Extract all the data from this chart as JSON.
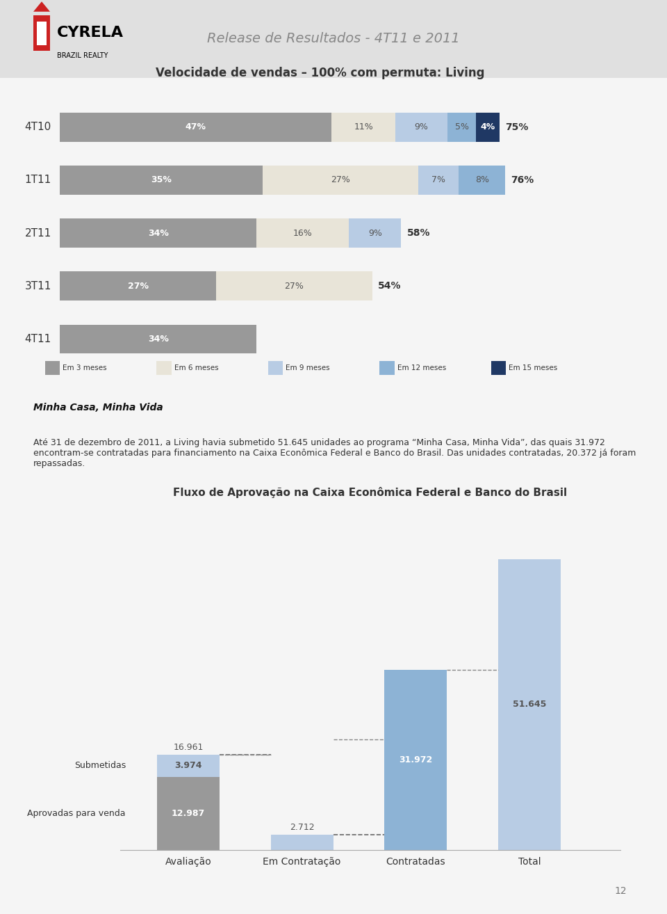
{
  "page_bg": "#f0f0f0",
  "header_bg": "#e8e8e8",
  "header_title": "Release de Resultados - 4T11 e 2011",
  "chart1_title": "Velocidade de vendas – 100% com permuta: Living",
  "bar_categories": [
    "4T10",
    "1T11",
    "2T11",
    "3T11",
    "4T11"
  ],
  "bar_data": {
    "Em 3 meses": [
      47,
      35,
      34,
      27,
      34
    ],
    "Em 6 meses": [
      11,
      27,
      16,
      27,
      0
    ],
    "Em 9 meses": [
      9,
      7,
      9,
      0,
      0
    ],
    "Em 12 meses": [
      5,
      8,
      0,
      0,
      0
    ],
    "Em 15 meses": [
      4,
      0,
      0,
      0,
      0
    ]
  },
  "bar_totals": [
    "75%",
    "76%",
    "58%",
    "54%",
    ""
  ],
  "bar_colors": {
    "Em 3 meses": "#999999",
    "Em 6 meses": "#e8e4d8",
    "Em 9 meses": "#b8cce4",
    "Em 12 meses": "#8db3d5",
    "Em 15 meses": "#1f3864"
  },
  "section_title": "Minha Casa, Minha Vida",
  "section_text": "Até 31 de dezembro de 2011, a Living havia submetido 51.645 unidades ao programa “Minha Casa, Minha Vida”, das quais 31.972 encontram-se contratadas para financiamento na Caixa Econômica Federal e Banco do Brasil. Das unidades contratadas, 20.372 já foram repassadas.",
  "chart2_title": "Fluxo de Aprovação na Caixa Econômica Federal e Banco do Brasil",
  "chart2_categories": [
    "Avaliação",
    "Em Contratação",
    "Contratadas",
    "Total"
  ],
  "chart2_bars": {
    "Submetidas": [
      3974,
      2712,
      31972,
      51645
    ],
    "Aprovadas para venda": [
      12987,
      0,
      0,
      0
    ]
  },
  "chart2_labels_top": [
    "16.961",
    "2.712",
    "31.972",
    "51.645"
  ],
  "chart2_labels_sub": [
    "3.974",
    "",
    "",
    ""
  ],
  "chart2_labels_bottom": [
    "12.987",
    "",
    "",
    ""
  ],
  "chart2_bar_colors": {
    "Submetidas": "#b8cce4",
    "Aprovadas para venda": "#7f7f7f"
  },
  "chart2_total_bar_color": "#b8cce4",
  "chart2_contratadas_color": "#8db3d5",
  "page_number": "12"
}
